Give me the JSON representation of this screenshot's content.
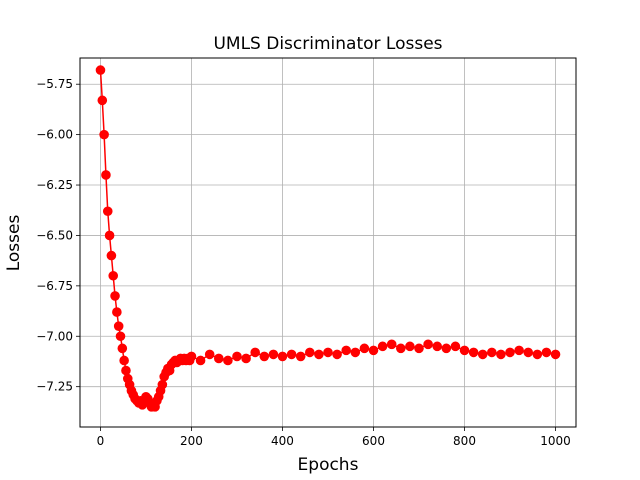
{
  "chart_data": {
    "type": "line",
    "title": "UMLS Discriminator Losses",
    "xlabel": "Epochs",
    "ylabel": "Losses",
    "xlim": [
      -45,
      1045
    ],
    "ylim": [
      -7.45,
      -5.62
    ],
    "xticks": [
      0,
      200,
      400,
      600,
      800,
      1000
    ],
    "xtick_labels": [
      "0",
      "200",
      "400",
      "600",
      "800",
      "1000"
    ],
    "yticks": [
      -5.75,
      -6.0,
      -6.25,
      -6.5,
      -6.75,
      -7.0,
      -7.25
    ],
    "ytick_labels": [
      "−5.75",
      "−6.00",
      "−6.25",
      "−6.50",
      "−6.75",
      "−7.00",
      "−7.25"
    ],
    "grid": true,
    "marker": "circle",
    "color": "#ff0000",
    "series": [
      {
        "x": [
          0,
          4,
          8,
          12,
          16,
          20,
          24,
          28,
          32,
          36,
          40,
          44,
          48,
          52,
          56,
          60,
          64,
          68,
          72,
          76,
          80,
          84,
          88,
          92,
          96,
          100,
          104,
          108,
          112,
          116,
          120,
          124,
          128,
          132,
          136,
          140,
          144,
          148,
          152,
          156,
          160,
          164,
          168,
          172,
          176,
          180,
          184,
          188,
          192,
          196,
          200,
          220,
          240,
          260,
          280,
          300,
          320,
          340,
          360,
          380,
          400,
          420,
          440,
          460,
          480,
          500,
          520,
          540,
          560,
          580,
          600,
          620,
          640,
          660,
          680,
          700,
          720,
          740,
          760,
          780,
          800,
          820,
          840,
          860,
          880,
          900,
          920,
          940,
          960,
          980,
          1000
        ],
        "values": [
          -5.68,
          -5.83,
          -6.0,
          -6.2,
          -6.38,
          -6.5,
          -6.6,
          -6.7,
          -6.8,
          -6.88,
          -6.95,
          -7.0,
          -7.06,
          -7.12,
          -7.17,
          -7.21,
          -7.24,
          -7.27,
          -7.29,
          -7.31,
          -7.32,
          -7.33,
          -7.32,
          -7.34,
          -7.32,
          -7.3,
          -7.31,
          -7.33,
          -7.35,
          -7.34,
          -7.35,
          -7.32,
          -7.3,
          -7.27,
          -7.24,
          -7.2,
          -7.18,
          -7.16,
          -7.17,
          -7.14,
          -7.13,
          -7.12,
          -7.13,
          -7.12,
          -7.11,
          -7.12,
          -7.11,
          -7.12,
          -7.11,
          -7.12,
          -7.1,
          -7.12,
          -7.09,
          -7.11,
          -7.12,
          -7.1,
          -7.11,
          -7.08,
          -7.1,
          -7.09,
          -7.1,
          -7.09,
          -7.1,
          -7.08,
          -7.09,
          -7.08,
          -7.09,
          -7.07,
          -7.08,
          -7.06,
          -7.07,
          -7.05,
          -7.04,
          -7.06,
          -7.05,
          -7.06,
          -7.04,
          -7.05,
          -7.06,
          -7.05,
          -7.07,
          -7.08,
          -7.09,
          -7.08,
          -7.09,
          -7.08,
          -7.07,
          -7.08,
          -7.09,
          -7.08,
          -7.09
        ]
      }
    ]
  }
}
